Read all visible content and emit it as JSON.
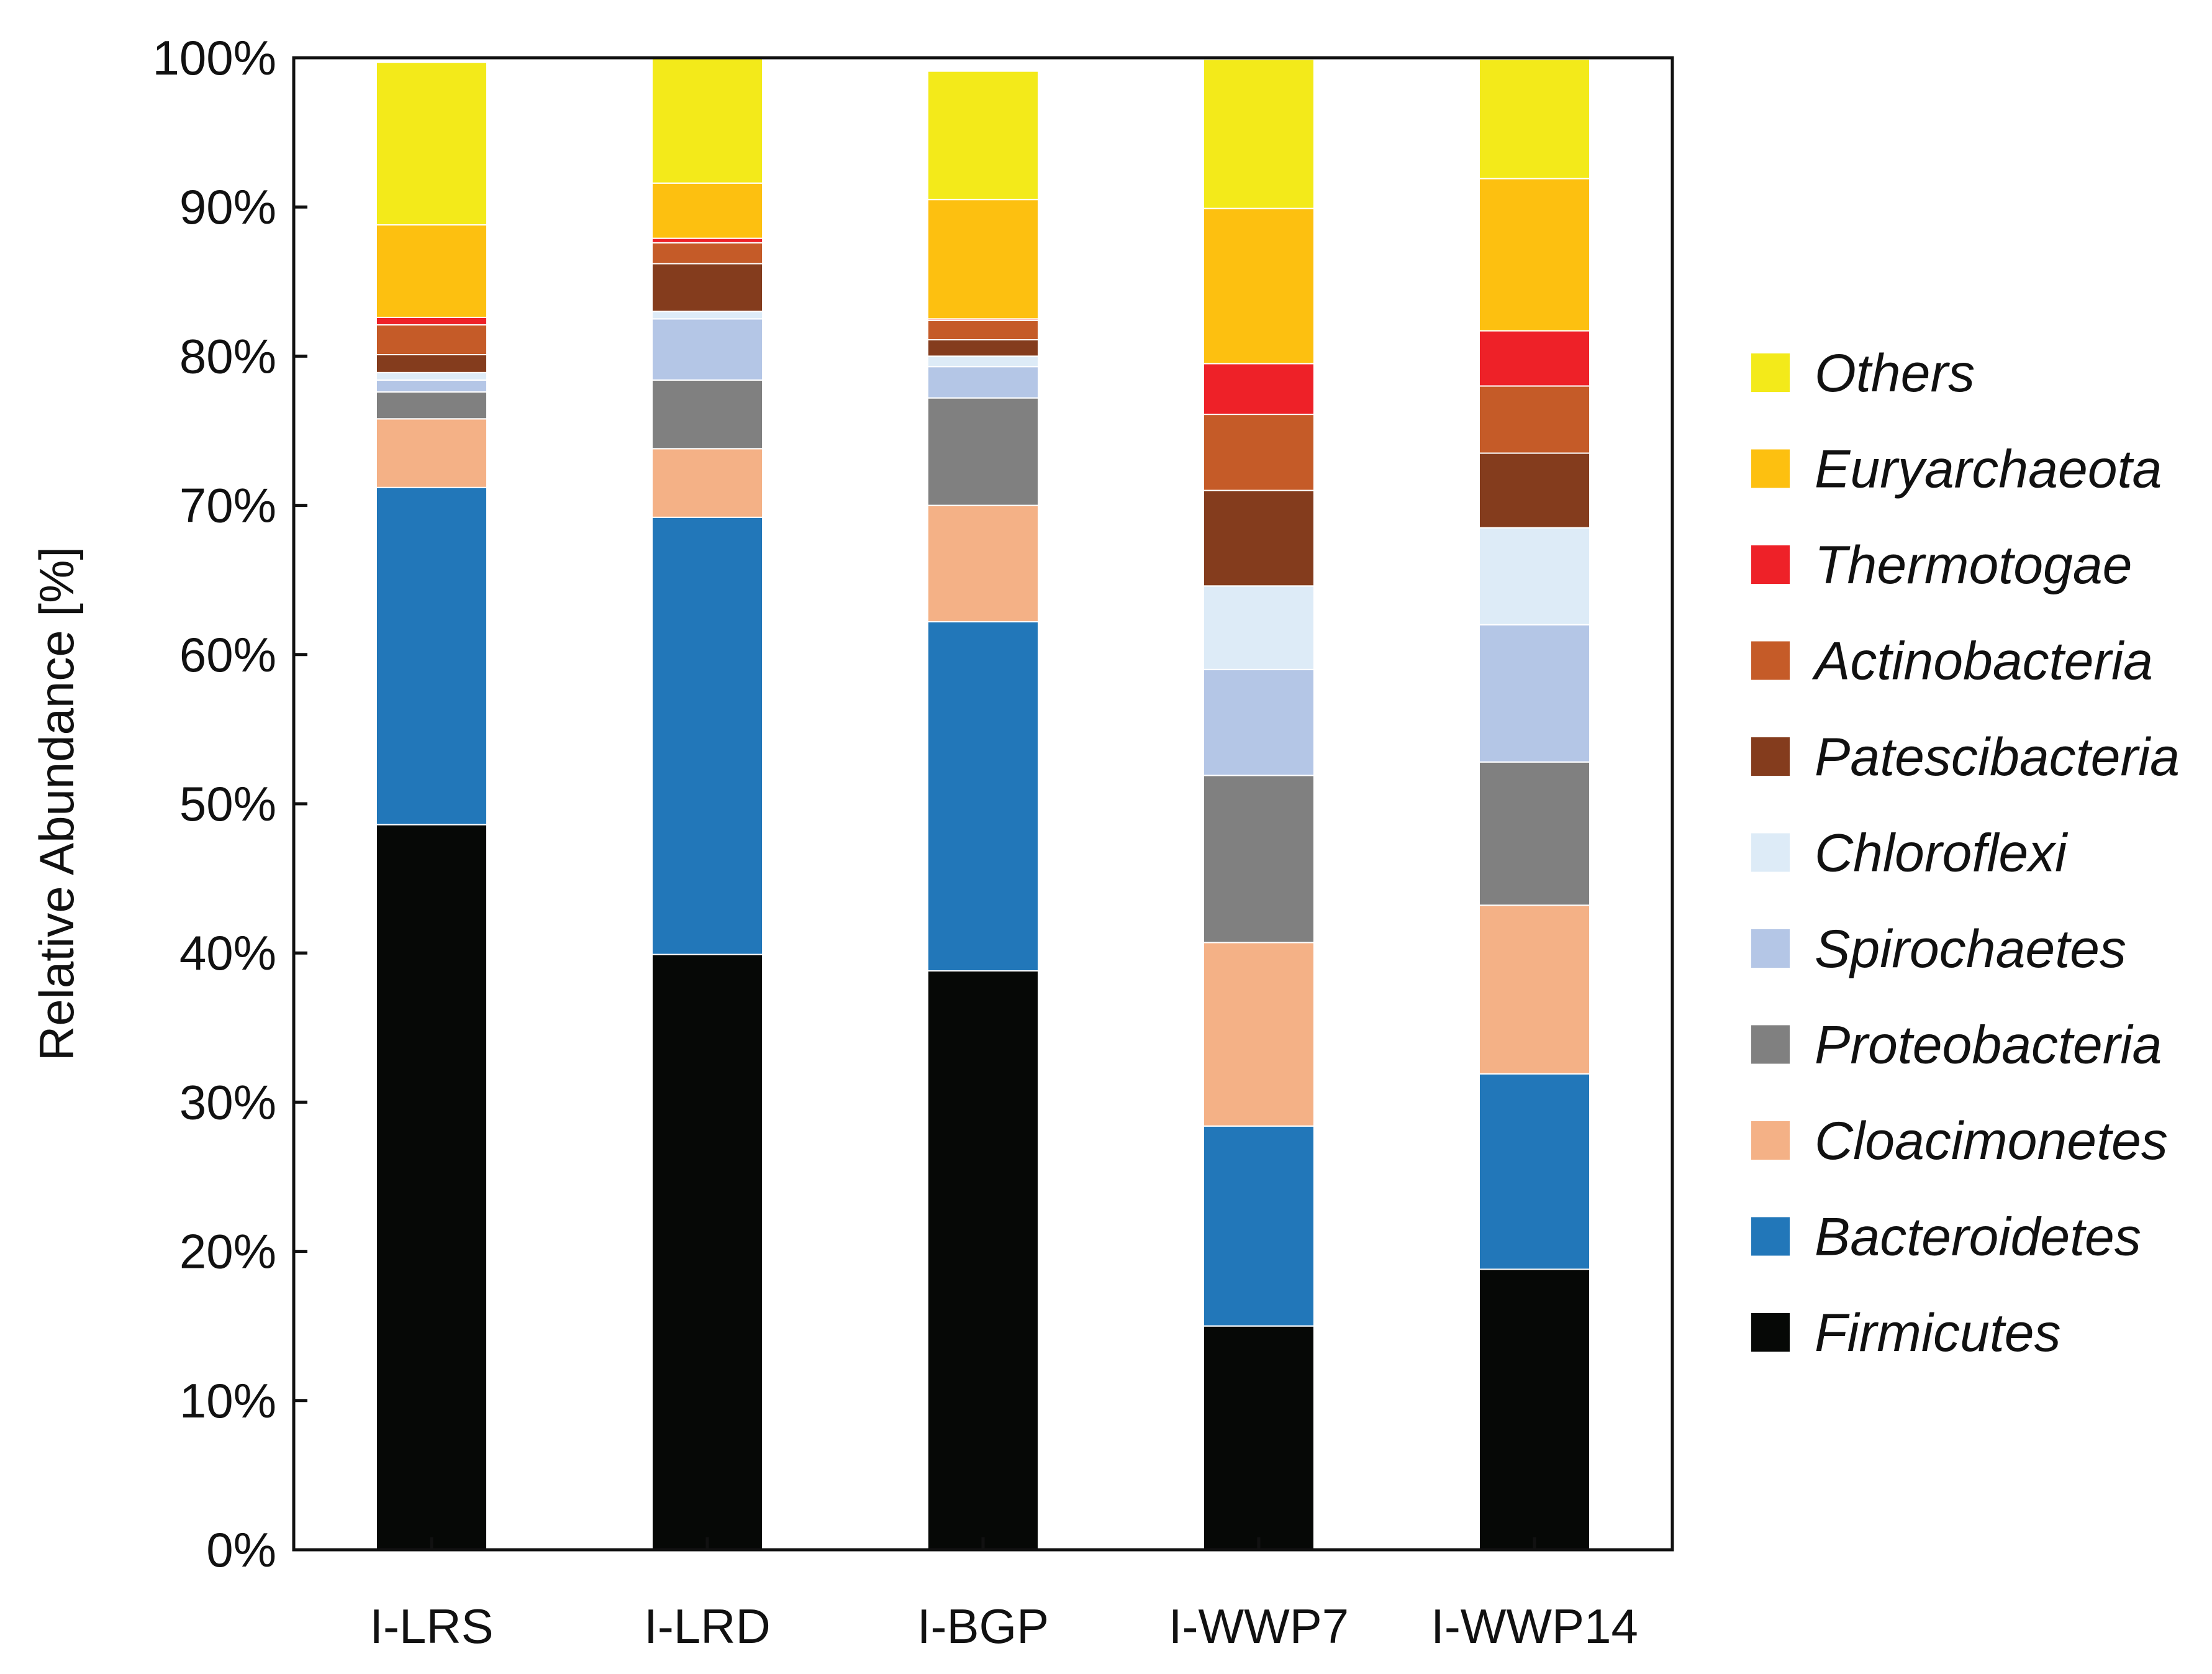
{
  "chart_data": {
    "type": "bar",
    "stacked": true,
    "ylabel": "Relative Abundance [%]",
    "ylim": [
      0,
      100
    ],
    "yticks": [
      "0%",
      "10%",
      "20%",
      "30%",
      "40%",
      "50%",
      "60%",
      "70%",
      "80%",
      "90%",
      "100%"
    ],
    "categories": [
      "I-LRS",
      "I-LRD",
      "I-BGP",
      "I-WWP7",
      "I-WWP14"
    ],
    "legend_position": "right",
    "series": [
      {
        "name": "Firmicutes",
        "color": "#060806",
        "values": [
          48.6,
          39.9,
          38.8,
          15.0,
          18.8
        ]
      },
      {
        "name": "Bacteroidetes",
        "color": "#2277B9",
        "values": [
          22.6,
          29.3,
          23.4,
          13.4,
          13.1
        ]
      },
      {
        "name": "Cloacimonetes",
        "color": "#F4B186",
        "values": [
          4.6,
          4.6,
          7.8,
          12.3,
          11.3
        ]
      },
      {
        "name": "Proteobacteria",
        "color": "#808080",
        "values": [
          1.8,
          4.6,
          7.2,
          11.2,
          9.6
        ]
      },
      {
        "name": "Spirochaetes",
        "color": "#B4C6E6",
        "values": [
          0.8,
          4.1,
          2.1,
          7.1,
          9.2
        ]
      },
      {
        "name": "Chloroflexi",
        "color": "#DDEBF7",
        "values": [
          0.5,
          0.5,
          0.7,
          5.6,
          6.5
        ]
      },
      {
        "name": "Patescibacteria",
        "color": "#843C1D",
        "values": [
          1.2,
          3.2,
          1.1,
          6.4,
          5.0
        ]
      },
      {
        "name": "Actinobacteria",
        "color": "#C55B28",
        "values": [
          2.0,
          1.4,
          1.3,
          5.1,
          4.5
        ]
      },
      {
        "name": "Thermotogae",
        "color": "#EE2128",
        "values": [
          0.5,
          0.3,
          0.1,
          3.4,
          3.7
        ]
      },
      {
        "name": "Euryarchaeota",
        "color": "#FDC010",
        "values": [
          6.2,
          3.7,
          8.0,
          10.4,
          10.2
        ]
      },
      {
        "name": "Others",
        "color": "#F3EA1A",
        "values": [
          10.9,
          8.5,
          8.6,
          10.0,
          8.0
        ]
      }
    ]
  }
}
